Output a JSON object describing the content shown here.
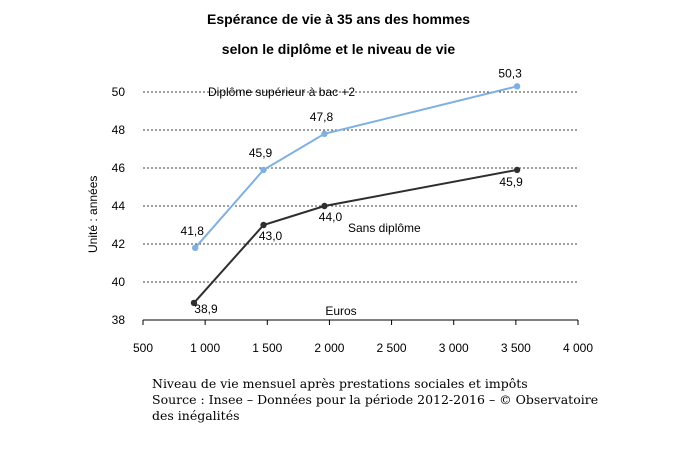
{
  "chart_data": {
    "type": "line",
    "title": "Espérance de vie à 35 ans des hommes",
    "subtitle": "selon le diplôme et le niveau de vie",
    "ylabel": "Unité : années",
    "xlabel": "Euros",
    "ylim": [
      38,
      50
    ],
    "xlim": [
      500,
      4000
    ],
    "yticks": [
      38,
      40,
      42,
      44,
      46,
      48,
      50
    ],
    "xticks": [
      "500",
      "1 000",
      "1 500",
      "2 000",
      "2 500",
      "3 000",
      "3 500",
      "4 000"
    ],
    "xtick_values": [
      500,
      1000,
      1500,
      2000,
      2500,
      3000,
      3500,
      4000
    ],
    "grid": "horizontal dashed",
    "series": [
      {
        "name": "Diplôme supérieur à bac +2",
        "color": "#7fb0e3",
        "x": [
          920,
          1470,
          1960,
          3510
        ],
        "y": [
          41.8,
          45.9,
          47.8,
          50.3
        ],
        "labels": [
          "41,8",
          "45,9",
          "47,8",
          "50,3"
        ]
      },
      {
        "name": "Sans diplôme",
        "color": "#2e2e2e",
        "x": [
          910,
          1470,
          1960,
          3510
        ],
        "y": [
          38.9,
          43.0,
          44.0,
          45.9
        ],
        "labels": [
          "38,9",
          "43,0",
          "44,0",
          "45,9"
        ]
      }
    ]
  },
  "notes": {
    "line1": "Niveau de vie mensuel après prestations sociales et impôts",
    "line2": "Source : Insee – Données pour la période 2012-2016  – © Observatoire",
    "line3": "des inégalités"
  }
}
